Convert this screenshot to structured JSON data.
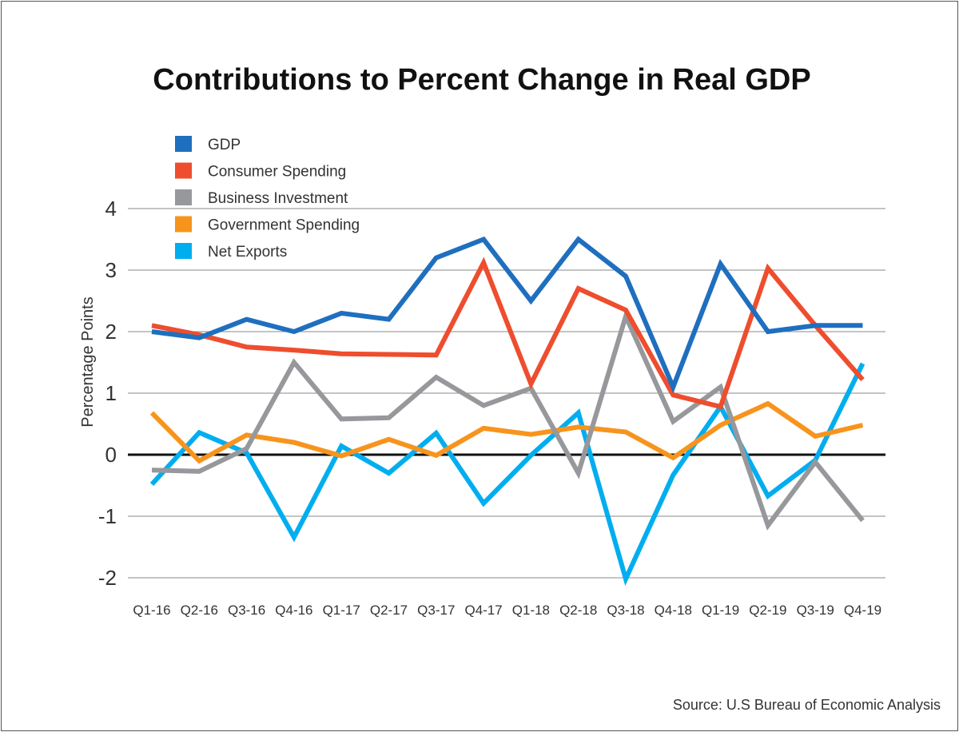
{
  "chart_data": {
    "type": "line",
    "title": "Contributions to Percent Change in Real GDP",
    "ylabel": "Percentage Points",
    "xlabel": "",
    "source": "Source: U.S Bureau of Economic Analysis",
    "ylim": [
      -2,
      4
    ],
    "yticks": [
      "-2",
      "-1",
      "0",
      "1",
      "2",
      "3",
      "4"
    ],
    "categories": [
      "Q1-16",
      "Q2-16",
      "Q3-16",
      "Q4-16",
      "Q1-17",
      "Q2-17",
      "Q3-17",
      "Q4-17",
      "Q1-18",
      "Q2-18",
      "Q3-18",
      "Q4-18",
      "Q1-19",
      "Q2-19",
      "Q3-19",
      "Q4-19"
    ],
    "legend_position": "top-left",
    "grid": true,
    "series": [
      {
        "name": "GDP",
        "color": "#1f6fbf",
        "values": [
          2.0,
          1.9,
          2.2,
          2.0,
          2.3,
          2.2,
          3.2,
          3.5,
          2.5,
          3.5,
          2.9,
          1.1,
          3.1,
          2.0,
          2.1,
          2.1
        ]
      },
      {
        "name": "Consumer Spending",
        "color": "#ee4d2e",
        "values": [
          2.1,
          1.95,
          1.75,
          1.7,
          1.64,
          1.63,
          1.62,
          3.12,
          1.15,
          2.7,
          2.35,
          0.97,
          0.78,
          3.03,
          2.1,
          1.22
        ]
      },
      {
        "name": "Business Investment",
        "color": "#97989b",
        "values": [
          -0.25,
          -0.27,
          0.1,
          1.5,
          0.58,
          0.6,
          1.26,
          0.8,
          1.08,
          -0.3,
          2.25,
          0.54,
          1.1,
          -1.15,
          -0.12,
          -1.07
        ]
      },
      {
        "name": "Government Spending",
        "color": "#f7941d",
        "values": [
          0.68,
          -0.1,
          0.32,
          0.2,
          -0.02,
          0.25,
          -0.01,
          0.43,
          0.33,
          0.45,
          0.37,
          -0.05,
          0.48,
          0.83,
          0.3,
          0.48
        ]
      },
      {
        "name": "Net Exports",
        "color": "#00aeef",
        "values": [
          -0.48,
          0.36,
          0.03,
          -1.34,
          0.14,
          -0.3,
          0.35,
          -0.79,
          -0.01,
          0.68,
          -2.02,
          -0.33,
          0.78,
          -0.67,
          -0.09,
          1.48
        ]
      }
    ]
  }
}
